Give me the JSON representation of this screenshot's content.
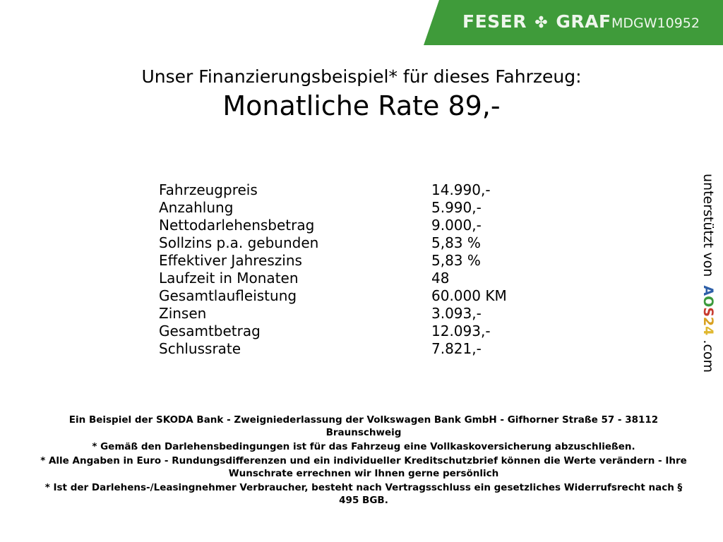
{
  "header": {
    "brand": "FESER",
    "brand2": "GRAF",
    "vehicle_code": "MDGW10952",
    "brand_color": "#3f9b3a"
  },
  "title": {
    "line1": "Unser Finanzierungsbeispiel* für dieses Fahrzeug:",
    "line2": "Monatliche Rate 89,-"
  },
  "rows": [
    {
      "label": "Fahrzeugpreis",
      "value": "14.990,-"
    },
    {
      "label": "Anzahlung",
      "value": "5.990,-"
    },
    {
      "label": "Nettodarlehensbetrag",
      "value": "9.000,-"
    },
    {
      "label": "Sollzins p.a. gebunden",
      "value": "5,83 %"
    },
    {
      "label": "Effektiver Jahreszins",
      "value": "5,83 %"
    },
    {
      "label": "Laufzeit in Monaten",
      "value": "48"
    },
    {
      "label": "Gesamtlaufleistung",
      "value": "60.000 KM"
    },
    {
      "label": "Zinsen",
      "value": "3.093,-"
    },
    {
      "label": "Gesamtbetrag",
      "value": "12.093,-"
    },
    {
      "label": "Schlussrate",
      "value": "7.821,-"
    }
  ],
  "side": {
    "text": "unterstützt von",
    "logo_a": "A",
    "logo_o": "O",
    "logo_s": "S",
    "logo_2": "2",
    "logo_4": "4",
    "suffix": ".com"
  },
  "footer": [
    "Ein Beispiel der SKODA Bank - Zweigniederlassung der Volkswagen Bank GmbH - Gifhorner Straße 57 - 38112 Braunschweig",
    "* Gemäß den Darlehensbedingungen ist für das Fahrzeug eine Vollkaskoversicherung abzuschließen.",
    "* Alle Angaben in Euro - Rundungsdifferenzen und ein individueller Kreditschutzbrief können die Werte verändern - Ihre Wunschrate errechnen wir Ihnen gerne persönlich",
    "* Ist der Darlehens-/Leasingnehmer Verbraucher, besteht nach Vertragsschluss ein gesetzliches Widerrufsrecht nach § 495 BGB."
  ]
}
